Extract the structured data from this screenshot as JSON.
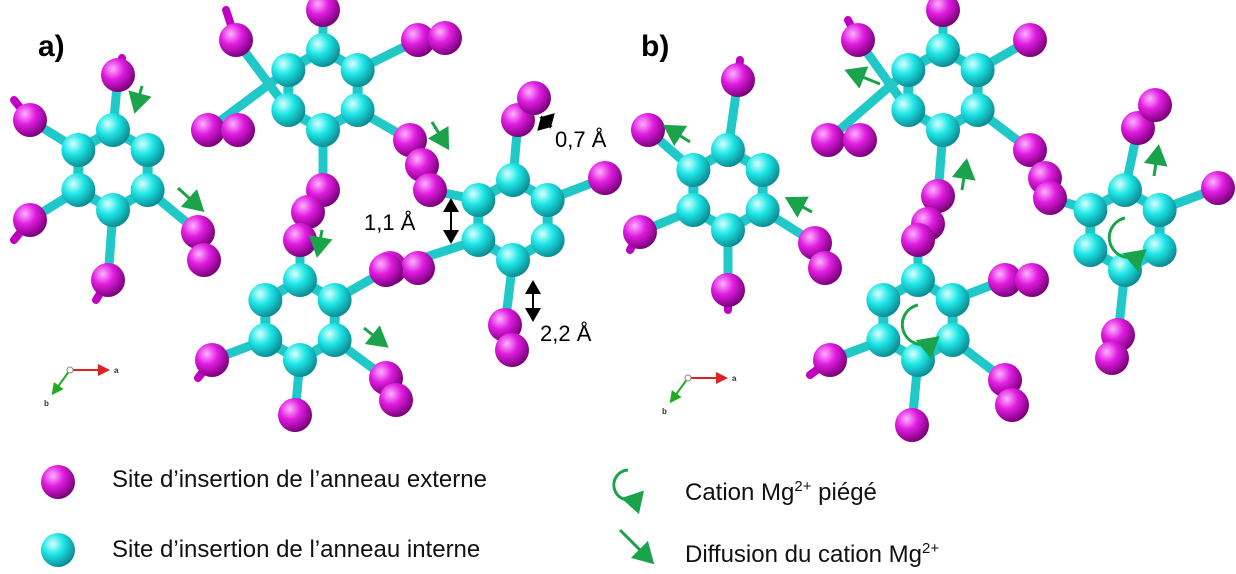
{
  "panels": {
    "a": {
      "label": "a)"
    },
    "b": {
      "label": "b)"
    }
  },
  "distances": {
    "d1": "0,7 Å",
    "d2": "1,1 Å",
    "d3": "2,2 Å"
  },
  "axes": {
    "a": "a",
    "b": "b"
  },
  "legend": {
    "external": "Site d’insertion de l’anneau externe",
    "internal": "Site d’insertion de l’anneau interne",
    "trapped_prefix": "Cation Mg",
    "trapped_sup": "2+",
    "trapped_suffix": " piégé",
    "diffusion_prefix": "Diffusion du cation Mg",
    "diffusion_sup": "2+"
  },
  "colors": {
    "external_site": "#e000e0",
    "internal_site": "#1ee6e6",
    "bond_internal": "#20c8c8",
    "bond_external": "#c000c0",
    "arrow": "#1aa34a",
    "axis_a": "#dd2222",
    "axis_b": "#22aa22"
  }
}
